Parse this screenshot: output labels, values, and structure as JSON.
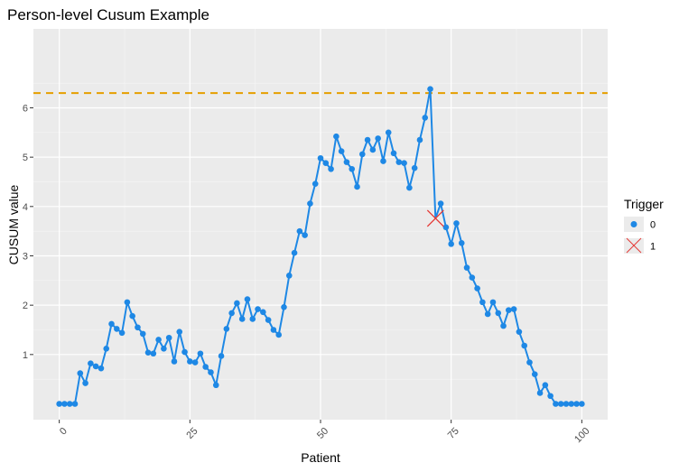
{
  "chart_data": {
    "type": "line",
    "title": "Person-level Cusum Example",
    "xlabel": "Patient",
    "ylabel": "CUSUM value",
    "xlim": [
      -4.95,
      104.95
    ],
    "ylim": [
      -0.32,
      7.6
    ],
    "x_ticks": [
      0,
      25,
      50,
      75,
      100
    ],
    "x_tick_labels": [
      "0",
      "25",
      "50",
      "75",
      "100"
    ],
    "y_ticks": [
      1,
      2,
      3,
      4,
      5,
      6
    ],
    "y_tick_labels": [
      "1",
      "2",
      "3",
      "4",
      "5",
      "6"
    ],
    "grid": true,
    "threshold": 6.3,
    "threshold_color": "#E69F00",
    "line_color": "#1E88E5",
    "trigger_color": "#E53935",
    "legend": {
      "title": "Trigger",
      "position": "right",
      "items": [
        {
          "label": "0",
          "marker": "point"
        },
        {
          "label": "1",
          "marker": "cross"
        }
      ]
    },
    "series": [
      {
        "x": [
          0,
          1,
          2,
          3,
          4,
          5,
          6,
          7,
          8,
          9,
          10,
          11,
          12,
          13,
          14,
          15,
          16,
          17,
          18,
          19,
          20,
          21,
          22,
          23,
          24,
          25,
          26,
          27,
          28,
          29,
          30,
          31,
          32,
          33,
          34,
          35,
          36,
          37,
          38,
          39,
          40,
          41,
          42,
          43,
          44,
          45,
          46,
          47,
          48,
          49,
          50,
          51,
          52,
          53,
          54,
          55,
          56,
          57,
          58,
          59,
          60,
          61,
          62,
          63,
          64,
          65,
          66,
          67,
          68,
          69,
          70,
          71,
          72,
          73,
          74,
          75,
          76,
          77,
          78,
          79,
          80,
          81,
          82,
          83,
          84,
          85,
          86,
          87,
          88,
          89,
          90,
          91,
          92,
          93,
          94,
          95,
          96,
          97,
          98,
          99,
          100
        ],
        "y": [
          0,
          0,
          0,
          0,
          0.62,
          0.42,
          0.82,
          0.76,
          0.72,
          1.12,
          1.62,
          1.52,
          1.44,
          2.06,
          1.78,
          1.55,
          1.42,
          1.04,
          1.02,
          1.3,
          1.12,
          1.34,
          0.86,
          1.46,
          1.05,
          0.86,
          0.84,
          1.02,
          0.75,
          0.64,
          0.38,
          0.97,
          1.52,
          1.84,
          2.04,
          1.72,
          2.12,
          1.72,
          1.92,
          1.86,
          1.7,
          1.5,
          1.4,
          1.96,
          2.6,
          3.06,
          3.5,
          3.42,
          4.06,
          4.46,
          4.98,
          4.88,
          4.76,
          5.42,
          5.12,
          4.9,
          4.76,
          4.4,
          5.06,
          5.35,
          5.15,
          5.38,
          4.92,
          5.5,
          5.08,
          4.9,
          4.88,
          4.38,
          4.78,
          5.35,
          5.8,
          6.38,
          3.76,
          4.06,
          3.58,
          3.24,
          3.66,
          3.26,
          2.76,
          2.56,
          2.34,
          2.06,
          1.82,
          2.06,
          1.84,
          1.58,
          1.9,
          1.92,
          1.46,
          1.18,
          0.84,
          0.6,
          0.22,
          0.38,
          0.16,
          0,
          0,
          0,
          0,
          0,
          0
        ],
        "trigger": [
          0,
          0,
          0,
          0,
          0,
          0,
          0,
          0,
          0,
          0,
          0,
          0,
          0,
          0,
          0,
          0,
          0,
          0,
          0,
          0,
          0,
          0,
          0,
          0,
          0,
          0,
          0,
          0,
          0,
          0,
          0,
          0,
          0,
          0,
          0,
          0,
          0,
          0,
          0,
          0,
          0,
          0,
          0,
          0,
          0,
          0,
          0,
          0,
          0,
          0,
          0,
          0,
          0,
          0,
          0,
          0,
          0,
          0,
          0,
          0,
          0,
          0,
          0,
          0,
          0,
          0,
          0,
          0,
          0,
          0,
          0,
          0,
          1,
          0,
          0,
          0,
          0,
          0,
          0,
          0,
          0,
          0,
          0,
          0,
          0,
          0,
          0,
          0,
          0,
          0,
          0,
          0,
          0,
          0,
          0,
          0,
          0,
          0,
          0,
          0,
          0,
          0
        ]
      }
    ]
  }
}
